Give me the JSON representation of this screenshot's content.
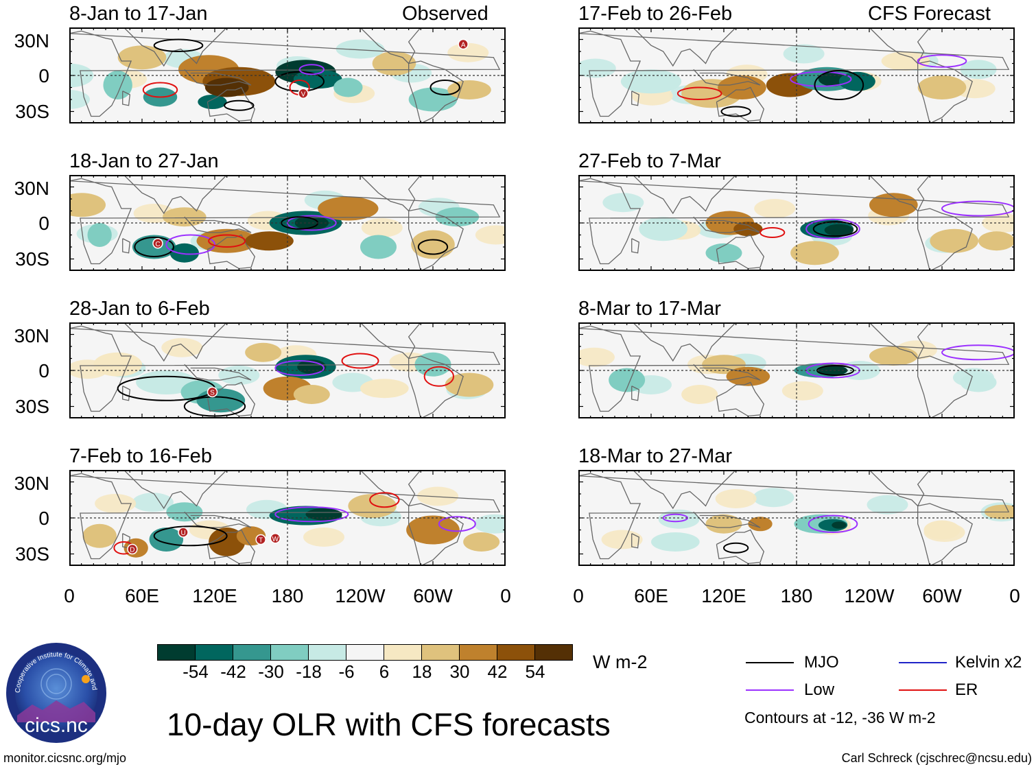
{
  "figure_title": "10-day OLR with CFS forecasts",
  "units": "W m-2",
  "left_column_label": "Observed",
  "right_column_label": "CFS Forecast",
  "panels_left": [
    {
      "period": "8-Jan to 17-Jan"
    },
    {
      "period": "18-Jan to 27-Jan"
    },
    {
      "period": "28-Jan to 6-Feb"
    },
    {
      "period": "7-Feb to 16-Feb"
    }
  ],
  "panels_right": [
    {
      "period": "17-Feb to 26-Feb"
    },
    {
      "period": "27-Feb to 7-Mar"
    },
    {
      "period": "8-Mar to 17-Mar"
    },
    {
      "period": "18-Mar to 27-Mar"
    }
  ],
  "lat_labels": [
    "30N",
    "0",
    "30S"
  ],
  "lon_labels": [
    "0",
    "60E",
    "120E",
    "180",
    "120W",
    "60W",
    "0"
  ],
  "colorbar": {
    "colors": [
      "#003c30",
      "#01665e",
      "#35978f",
      "#80cdc1",
      "#c7eae5",
      "#f5f5f5",
      "#f6e8c3",
      "#dfc27d",
      "#bf812d",
      "#8c510a",
      "#543005"
    ],
    "ticks": [
      "-54",
      "-42",
      "-30",
      "-18",
      "-6",
      "6",
      "18",
      "30",
      "42",
      "54"
    ]
  },
  "legend": {
    "items": [
      {
        "label": "MJO",
        "color": "#000000"
      },
      {
        "label": "Kelvin x2",
        "color": "#1f24c8"
      },
      {
        "label": "Low",
        "color": "#9b30ff"
      },
      {
        "label": "ER",
        "color": "#e01010"
      }
    ],
    "note": "Contours at -12, -36 W m-2"
  },
  "storm_labels_panel1": [
    "A",
    "V"
  ],
  "storm_labels_panel2": [
    "C"
  ],
  "storm_labels_panel3": [
    "S"
  ],
  "storm_labels_panel4": [
    "D",
    "U",
    "T",
    "W"
  ],
  "logo_text": "cics.nc",
  "logo_ring_text": "Cooperative Institute for Climate and Satellites",
  "website": "monitor.cicsnc.org/mjo",
  "credit": "Carl Schreck (cjschrec@ncsu.edu)"
}
